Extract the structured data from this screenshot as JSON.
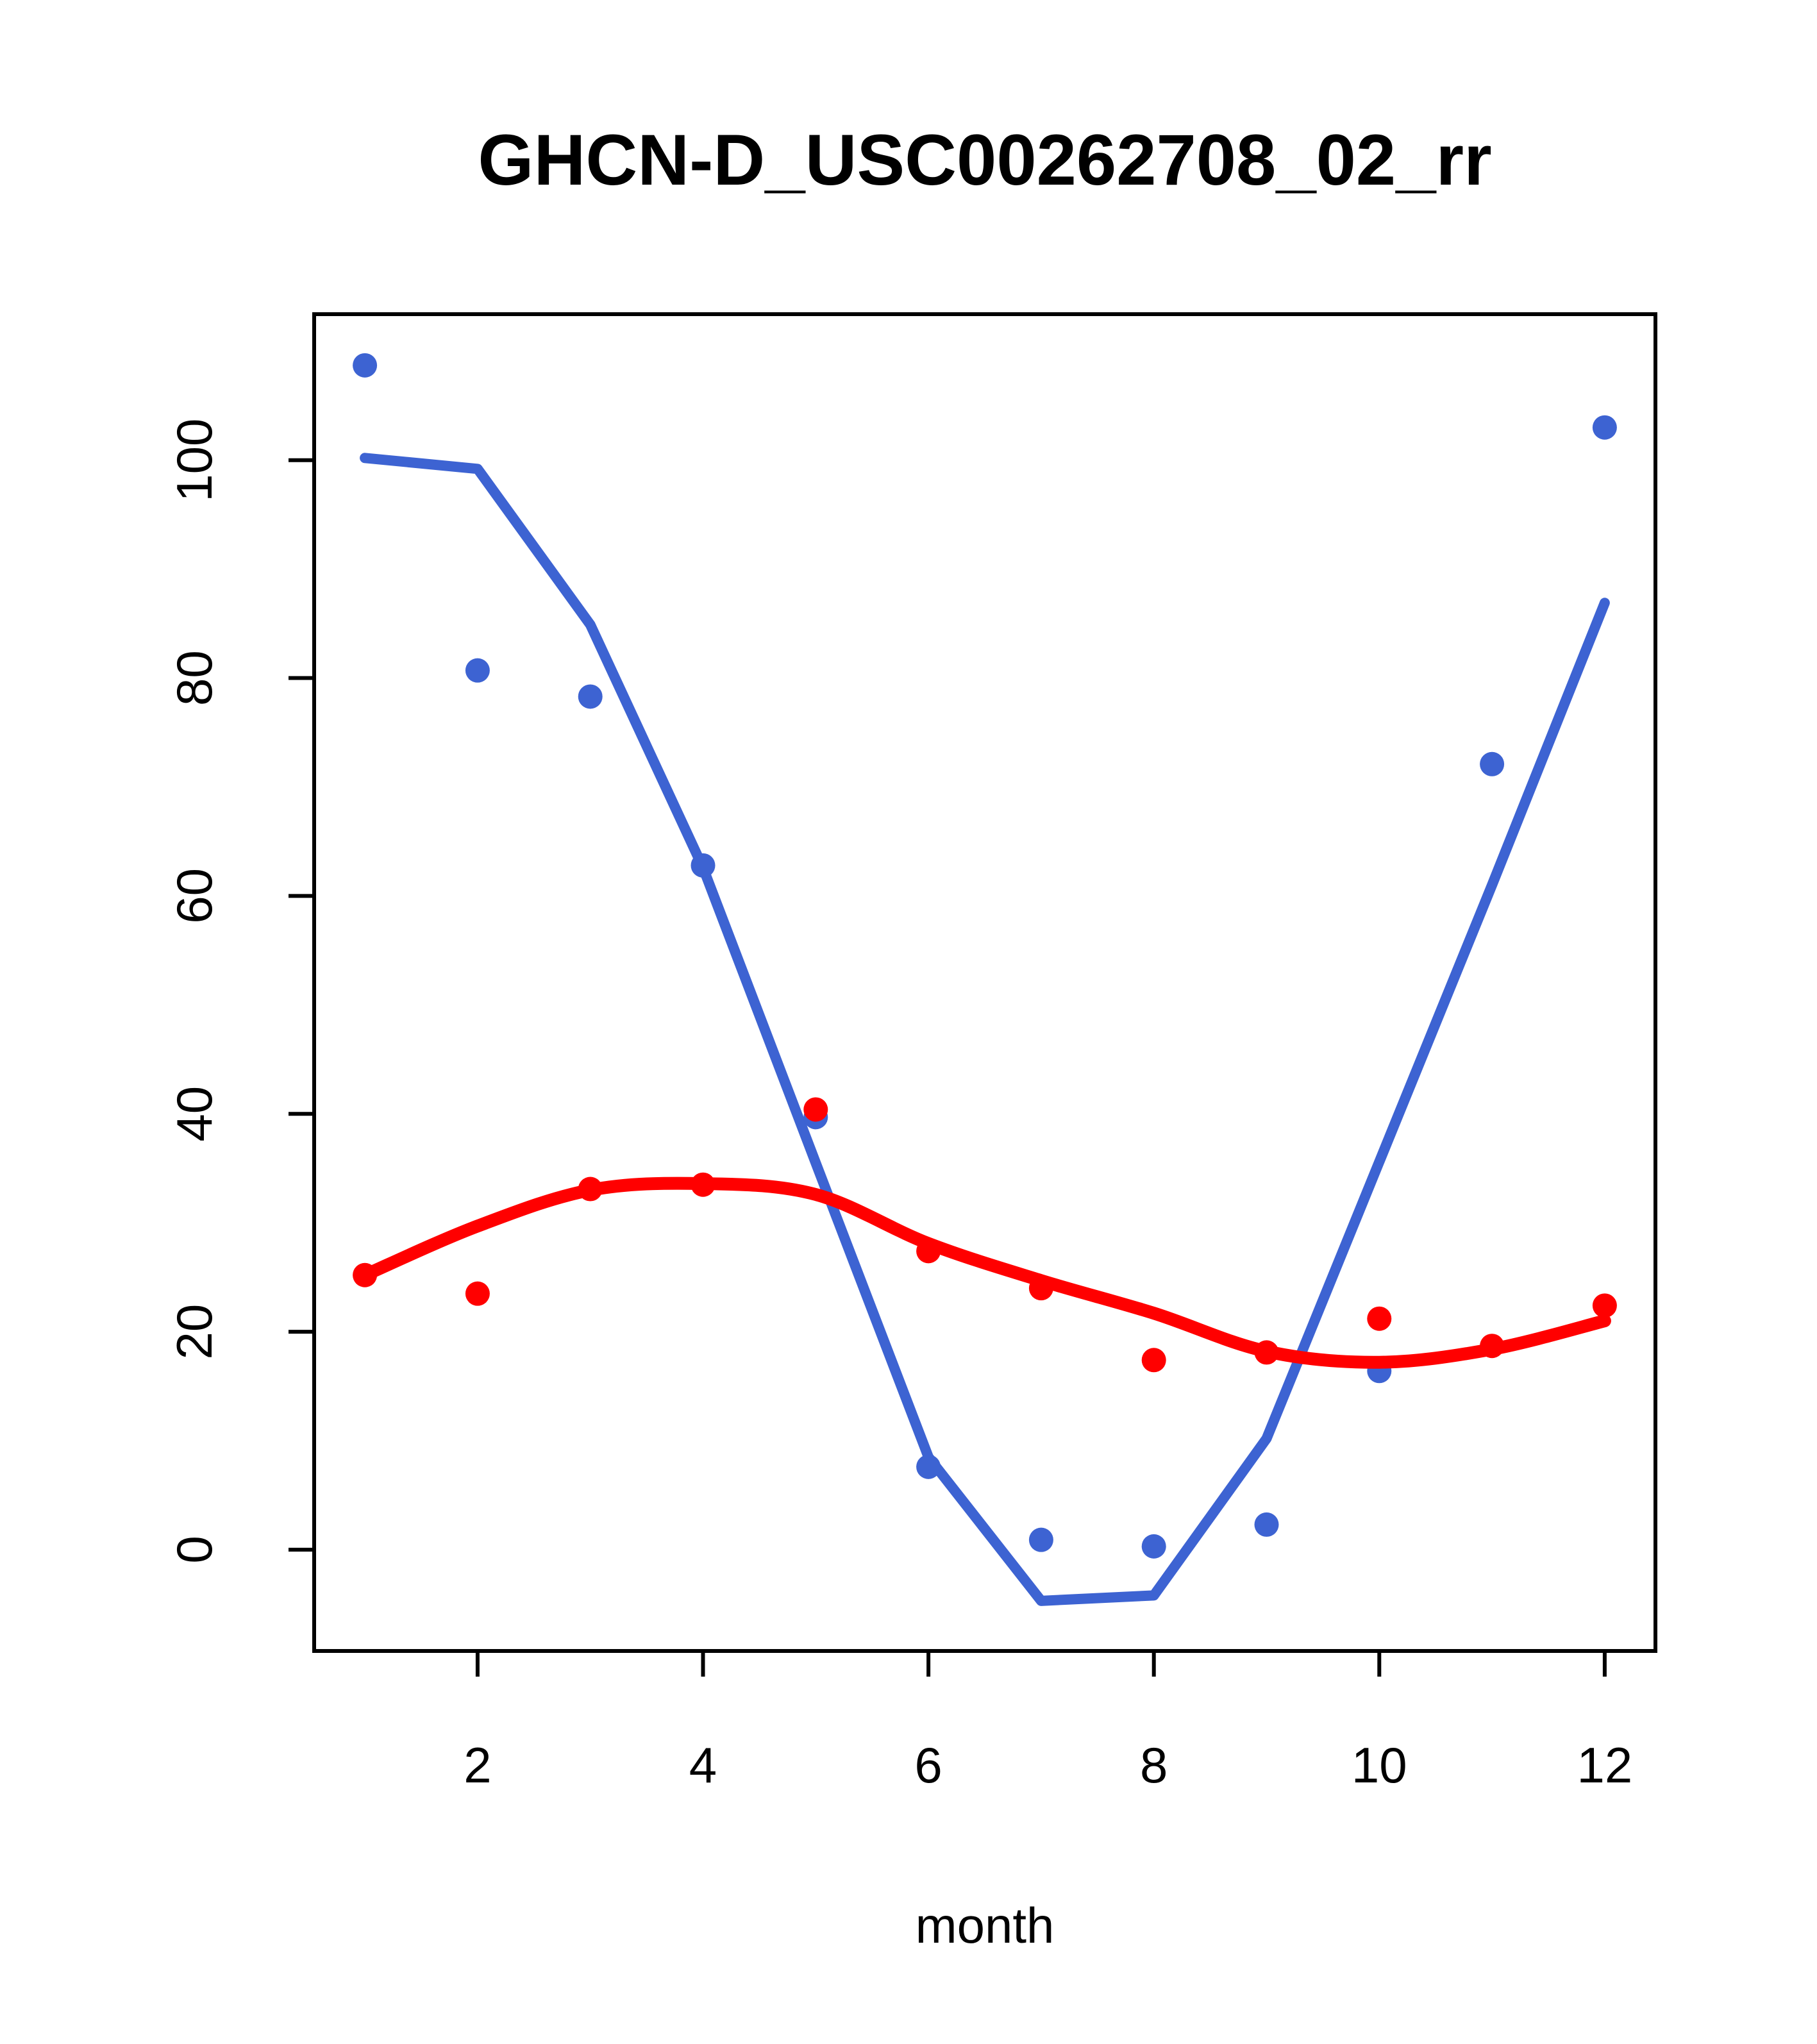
{
  "chart_data": {
    "type": "scatter",
    "title": "GHCN-D_USC00262708_02_rr",
    "xlabel": "month",
    "ylabel": "",
    "grid": false,
    "legend_position": "none",
    "background_color": "#ffffff",
    "frame_color": "#000000",
    "xlim": [
      0.55,
      12.45
    ],
    "ylim": [
      -9.3,
      113.4
    ],
    "x_ticks": [
      2,
      4,
      6,
      8,
      10,
      12
    ],
    "y_ticks": [
      0,
      20,
      40,
      60,
      80,
      100
    ],
    "x": [
      1,
      2,
      3,
      4,
      5,
      6,
      7,
      8,
      9,
      10,
      11,
      12
    ],
    "series": [
      {
        "name": "blue-observed",
        "color": "#3d63d2",
        "marker": "filled-circle",
        "smooth_line": false,
        "points": [
          108.7,
          80.7,
          78.3,
          62.8,
          39.7,
          7.6,
          0.9,
          0.3,
          2.3,
          16.4,
          72.1,
          103.0
        ],
        "line": [
          100.2,
          99.2,
          84.9,
          62.6,
          35.5,
          8.5,
          -4.7,
          -4.2,
          10.2,
          35.6,
          61.0,
          86.9
        ]
      },
      {
        "name": "red-fit",
        "color": "#ff0000",
        "marker": "filled-circle",
        "smooth_line": true,
        "points": [
          25.2,
          23.5,
          33.1,
          33.5,
          40.4,
          27.4,
          24.0,
          17.4,
          18.1,
          21.2,
          18.7,
          22.4
        ],
        "line": [
          25.2,
          29.7,
          33.0,
          33.6,
          32.6,
          28.1,
          24.7,
          21.7,
          18.2,
          17.2,
          18.4,
          21.0
        ]
      }
    ]
  }
}
